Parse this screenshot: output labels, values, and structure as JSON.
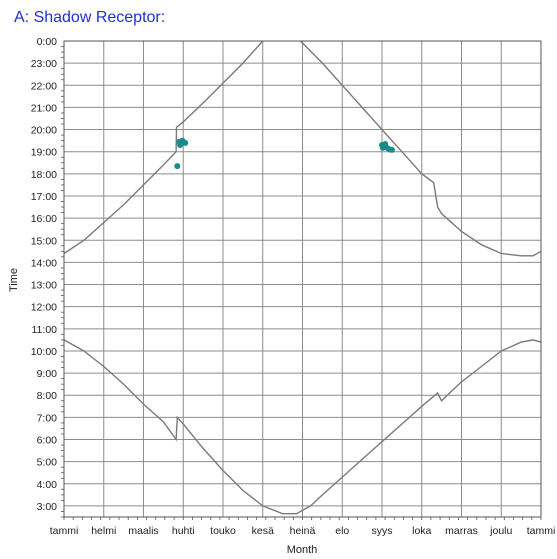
{
  "chart_data": {
    "type": "line",
    "title": "A: Shadow Receptor:",
    "xlabel": "Month",
    "ylabel": "Time",
    "grid": true,
    "colors": {
      "title": "#1f2fd6",
      "line": "#7a7a7a",
      "points": "#1a8a8a",
      "grid": "#8c8c8c"
    },
    "x_categories": [
      "tammi",
      "helmi",
      "maalis",
      "huhti",
      "touko",
      "kesä",
      "heinä",
      "elo",
      "syys",
      "loka",
      "marras",
      "joulu",
      "tammi"
    ],
    "y_tick_labels": [
      "0:00",
      "23:00",
      "22:00",
      "21:00",
      "20:00",
      "19:00",
      "18:00",
      "17:00",
      "16:00",
      "15:00",
      "14:00",
      "13:00",
      "12:00",
      "11:00",
      "10:00",
      "9:00",
      "8:00",
      "7:00",
      "6:00",
      "5:00",
      "4:00",
      "3:00"
    ],
    "y_tick_hours": [
      24,
      23,
      22,
      21,
      20,
      19,
      18,
      17,
      16,
      15,
      14,
      13,
      12,
      11,
      10,
      9,
      8,
      7,
      6,
      5,
      4,
      3
    ],
    "ylim": [
      2.5,
      24
    ],
    "xlim_months": [
      0,
      12
    ],
    "series": [
      {
        "points": [
          [
            0,
            14.4
          ],
          [
            0.5,
            15.0
          ],
          [
            1,
            15.8
          ],
          [
            1.5,
            16.6
          ],
          [
            2,
            17.5
          ],
          [
            2.5,
            18.4
          ],
          [
            2.82,
            19.0
          ],
          [
            2.83,
            20.1
          ],
          [
            3,
            20.35
          ],
          [
            3.5,
            21.2
          ],
          [
            4,
            22.1
          ],
          [
            4.5,
            23.0
          ],
          [
            5.0,
            24.0
          ]
        ]
      },
      {
        "points": [
          [
            5.95,
            24.0
          ],
          [
            6.5,
            23.0
          ],
          [
            7,
            22.0
          ],
          [
            7.5,
            21.0
          ],
          [
            8,
            20.0
          ],
          [
            8.5,
            19.0
          ],
          [
            9,
            18.0
          ],
          [
            9.3,
            17.6
          ],
          [
            9.4,
            16.5
          ],
          [
            9.5,
            16.2
          ],
          [
            10,
            15.4
          ],
          [
            10.5,
            14.8
          ],
          [
            11,
            14.4
          ],
          [
            11.5,
            14.3
          ],
          [
            11.8,
            14.3
          ],
          [
            12,
            14.5
          ]
        ]
      },
      {
        "points": [
          [
            0,
            10.5
          ],
          [
            0.5,
            10.0
          ],
          [
            1,
            9.3
          ],
          [
            1.5,
            8.5
          ],
          [
            2,
            7.6
          ],
          [
            2.5,
            6.8
          ],
          [
            2.82,
            6.0
          ],
          [
            2.85,
            7.0
          ],
          [
            3,
            6.7
          ],
          [
            3.5,
            5.6
          ],
          [
            4,
            4.6
          ],
          [
            4.5,
            3.7
          ],
          [
            5.0,
            3.0
          ],
          [
            5.5,
            2.65
          ],
          [
            5.85,
            2.65
          ],
          [
            6.2,
            3.0
          ],
          [
            6.5,
            3.5
          ],
          [
            7,
            4.3
          ],
          [
            7.5,
            5.1
          ],
          [
            8,
            5.9
          ],
          [
            8.5,
            6.7
          ],
          [
            9,
            7.5
          ],
          [
            9.4,
            8.1
          ],
          [
            9.5,
            7.75
          ],
          [
            9.7,
            8.1
          ],
          [
            10,
            8.6
          ],
          [
            10.5,
            9.3
          ],
          [
            11,
            10.0
          ],
          [
            11.5,
            10.4
          ],
          [
            11.8,
            10.5
          ],
          [
            12,
            10.4
          ]
        ]
      }
    ],
    "markers": [
      {
        "x": 2.9,
        "y": 19.45
      },
      {
        "x": 2.95,
        "y": 19.38
      },
      {
        "x": 3.0,
        "y": 19.42
      },
      {
        "x": 2.92,
        "y": 19.3
      },
      {
        "x": 2.98,
        "y": 19.5
      },
      {
        "x": 3.05,
        "y": 19.4
      },
      {
        "x": 2.85,
        "y": 18.35
      },
      {
        "x": 8.0,
        "y": 19.3
      },
      {
        "x": 8.05,
        "y": 19.25
      },
      {
        "x": 8.1,
        "y": 19.2
      },
      {
        "x": 8.15,
        "y": 19.15
      },
      {
        "x": 8.2,
        "y": 19.1
      },
      {
        "x": 8.08,
        "y": 19.35
      },
      {
        "x": 8.25,
        "y": 19.08
      },
      {
        "x": 8.02,
        "y": 19.18
      }
    ]
  }
}
